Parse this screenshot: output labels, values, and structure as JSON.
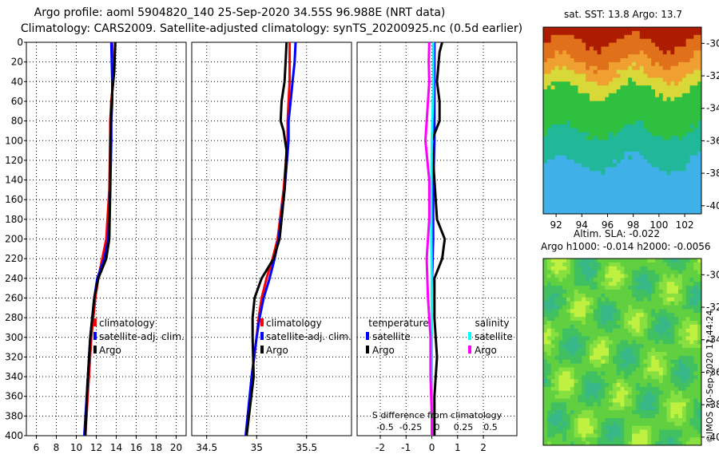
{
  "header": {
    "line1": "Argo profile: aoml 5904820_140 25-Sep-2020 34.55S 96.988E (NRT data)",
    "line2": "Climatology: CARS2009. Satellite-adjusted climatology: synTS_20200925.nc (0.5d earlier)"
  },
  "chart_data": [
    {
      "type": "line",
      "panel": "temperature",
      "ylim": [
        400,
        0
      ],
      "xlim": [
        5,
        21
      ],
      "xticks": [
        6,
        8,
        10,
        12,
        14,
        16,
        18,
        20
      ],
      "yticks": [
        0,
        20,
        40,
        60,
        80,
        100,
        120,
        140,
        160,
        180,
        200,
        220,
        240,
        260,
        280,
        300,
        320,
        340,
        360,
        380,
        400
      ],
      "legend": [
        "climatology",
        "satellite-adj. clim.",
        "Argo"
      ],
      "series": [
        {
          "name": "climatology",
          "color": "#ff0000",
          "depth": [
            0,
            40,
            60,
            80,
            100,
            150,
            200,
            220,
            240,
            260,
            300,
            350,
            400
          ],
          "values": [
            13.6,
            13.7,
            13.5,
            13.4,
            13.4,
            13.3,
            13.0,
            12.6,
            12.2,
            11.9,
            11.5,
            11.2,
            10.9
          ]
        },
        {
          "name": "satellite-adj. clim.",
          "color": "#0000ff",
          "depth": [
            0,
            40,
            60,
            80,
            100,
            150,
            200,
            220,
            240,
            260,
            300,
            350,
            400
          ],
          "values": [
            13.5,
            13.6,
            13.6,
            13.5,
            13.5,
            13.4,
            13.2,
            12.8,
            12.1,
            11.8,
            11.4,
            11.1,
            10.8
          ]
        },
        {
          "name": "Argo",
          "color": "#000000",
          "depth": [
            0,
            30,
            50,
            70,
            100,
            150,
            200,
            220,
            240,
            260,
            300,
            350,
            400
          ],
          "values": [
            13.9,
            13.8,
            13.6,
            13.5,
            13.4,
            13.4,
            13.3,
            13.0,
            12.2,
            11.8,
            11.4,
            11.1,
            10.9
          ]
        }
      ]
    },
    {
      "type": "line",
      "panel": "salinity",
      "ylim": [
        400,
        0
      ],
      "xlim": [
        34.35,
        35.95
      ],
      "xticks": [
        34.5,
        35,
        35.5
      ],
      "xticklabels": [
        "34.5",
        "35",
        "35.5"
      ],
      "legend": [
        "climatology",
        "satellite-adj. clim.",
        "Argo"
      ],
      "series": [
        {
          "name": "climatology",
          "color": "#ff0000",
          "depth": [
            0,
            20,
            40,
            60,
            80,
            100,
            150,
            200,
            220,
            240,
            260,
            280,
            300,
            340,
            400
          ],
          "values": [
            35.33,
            35.33,
            35.33,
            35.32,
            35.31,
            35.31,
            35.27,
            35.21,
            35.16,
            35.1,
            35.05,
            35.02,
            35.0,
            34.95,
            34.9
          ]
        },
        {
          "name": "satellite-adj. clim.",
          "color": "#0000ff",
          "depth": [
            0,
            20,
            40,
            60,
            80,
            100,
            150,
            200,
            220,
            240,
            260,
            280,
            300,
            340,
            400
          ],
          "values": [
            35.39,
            35.38,
            35.36,
            35.34,
            35.32,
            35.32,
            35.28,
            35.22,
            35.18,
            35.13,
            35.07,
            35.03,
            35.0,
            34.95,
            34.89
          ]
        },
        {
          "name": "Argo",
          "color": "#000000",
          "depth": [
            0,
            20,
            40,
            60,
            80,
            90,
            110,
            150,
            200,
            220,
            240,
            260,
            280,
            300,
            340,
            400
          ],
          "values": [
            35.3,
            35.29,
            35.28,
            35.25,
            35.24,
            35.27,
            35.3,
            35.28,
            35.23,
            35.17,
            35.05,
            34.98,
            34.96,
            34.96,
            34.97,
            34.9
          ]
        }
      ]
    },
    {
      "type": "line",
      "panel": "difference",
      "ylim": [
        400,
        0
      ],
      "xlim": [
        -2.9,
        3.3
      ],
      "xticks": [
        -2,
        -1,
        0,
        1,
        2
      ],
      "secondary_xticklabels": [
        "-0.5",
        "-0.25",
        "0",
        "0.25",
        "0.5"
      ],
      "secondary_xlabel": "S difference from climatology",
      "legend_temperature_title": "temperature",
      "legend_salinity_title": "salinity",
      "legend": [
        "satellite",
        "Argo",
        "satellite",
        "Argo"
      ],
      "series": [
        {
          "name": "T satellite",
          "color": "#0000ff",
          "depth": [
            0,
            50,
            100,
            150,
            200,
            250,
            300,
            350,
            400
          ],
          "values": [
            0.1,
            0.1,
            0.1,
            0.05,
            0.05,
            0.0,
            0.0,
            0.0,
            0.0
          ]
        },
        {
          "name": "T Argo",
          "color": "#000000",
          "depth": [
            0,
            10,
            40,
            60,
            80,
            100,
            140,
            180,
            200,
            220,
            240,
            280,
            320,
            360,
            400
          ],
          "values": [
            0.4,
            0.3,
            0.2,
            0.3,
            0.3,
            0.0,
            0.1,
            0.2,
            0.5,
            0.4,
            0.1,
            0.1,
            0.2,
            0.1,
            0.1
          ]
        },
        {
          "name": "S satellite",
          "color": "#00ffff",
          "depth": [
            0,
            50,
            100,
            150,
            200,
            250,
            300,
            350,
            400
          ],
          "values": [
            0.05,
            0.05,
            0.0,
            -0.02,
            -0.02,
            0.0,
            0.0,
            0.0,
            0.0
          ]
        },
        {
          "name": "S Argo",
          "color": "#ff00ff",
          "depth": [
            0,
            20,
            40,
            60,
            80,
            100,
            140,
            180,
            220,
            260,
            300,
            340,
            380,
            400
          ],
          "values": [
            -0.1,
            -0.12,
            -0.1,
            -0.15,
            -0.2,
            -0.25,
            -0.1,
            -0.1,
            -0.2,
            -0.15,
            -0.05,
            -0.05,
            0.0,
            0.0
          ]
        }
      ]
    },
    {
      "type": "heatmap",
      "panel": "sst-map",
      "title": "sat. SST: 13.8 Argo: 13.7",
      "xlim": [
        91,
        103.3
      ],
      "ylim": [
        -40.5,
        -29
      ],
      "xticks": [
        92,
        94,
        96,
        98,
        100,
        102
      ],
      "yticks": [
        -30,
        -32,
        -34,
        -36,
        -38,
        -40
      ],
      "colors": [
        "#ad1c00",
        "#e0701a",
        "#f0a030",
        "#d8d838",
        "#30c040",
        "#20b898",
        "#40b0e8"
      ]
    },
    {
      "type": "heatmap",
      "panel": "sla-map",
      "title_line1": "Altim. SLA: -0.022",
      "title_line2": "Argo h1000: -0.014 h2000: -0.0056",
      "xlim": [
        91,
        103.3
      ],
      "ylim": [
        -40.5,
        -29
      ],
      "yticks": [
        -30,
        -32,
        -34,
        -36,
        -38,
        -40
      ],
      "colors": [
        "#40c060",
        "#60d040",
        "#88e040",
        "#c0f040",
        "#38b888"
      ]
    }
  ],
  "credit": "©IMOS 30-Sep-2020 11:44:24"
}
